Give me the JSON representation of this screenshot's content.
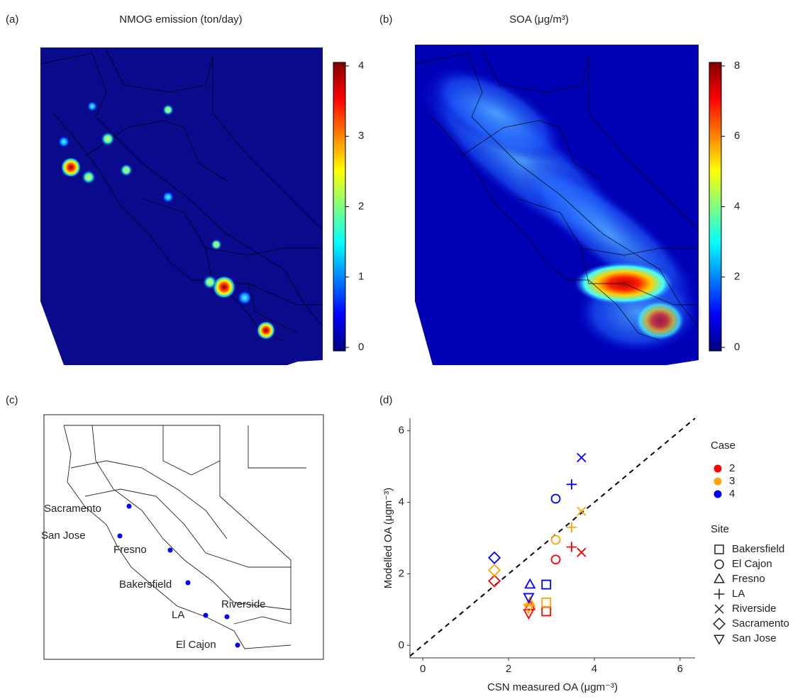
{
  "chart_data": [
    {
      "type": "heatmap-map",
      "label": "(a)",
      "title": "NMOG emission (ton/day)",
      "colorbar": {
        "lim": [
          -0.05,
          4.05
        ],
        "ticks": [
          0,
          1,
          2,
          3,
          4
        ],
        "colors": [
          "#00007f",
          "#0000ff",
          "#007fff",
          "#00ffff",
          "#7fff7f",
          "#ffff00",
          "#ff7f00",
          "#ff0000",
          "#7f0000"
        ]
      }
    },
    {
      "type": "heatmap-map",
      "label": "(b)",
      "title": "SOA (μg/m³)",
      "colorbar": {
        "lim": [
          -0.1,
          8.1
        ],
        "ticks": [
          0,
          2,
          4,
          6,
          8
        ],
        "colors": [
          "#00007f",
          "#0000ff",
          "#007fff",
          "#00ffff",
          "#7fff7f",
          "#ffff00",
          "#ff7f00",
          "#ff0000",
          "#7f0000"
        ]
      }
    },
    {
      "type": "site-map",
      "label": "(c)",
      "color": "#0000ff",
      "sites": [
        "Sacramento",
        "San Jose",
        "Fresno",
        "Bakersfield",
        "LA",
        "Riverside",
        "El Cajon"
      ]
    },
    {
      "type": "scatter",
      "label": "(d)",
      "xlabel": "CSN measured OA (μgm⁻³)",
      "ylabel": "Modelled OA (μgm⁻³)",
      "xlim": [
        -0.3,
        6.35
      ],
      "ylim": [
        -0.35,
        6.35
      ],
      "xticks": [
        0,
        2,
        4,
        6
      ],
      "yticks": [
        0,
        2,
        4,
        6
      ],
      "legend_title": "Case",
      "shape_legend_title": "Site",
      "sites": [
        "Bakersfield",
        "El Cajon",
        "Fresno",
        "LA",
        "Riverside",
        "Sacramento",
        "San Jose"
      ],
      "series": [
        {
          "name": "2",
          "color": "#ff0000",
          "x": [
            2.88,
            3.1,
            2.5,
            3.47,
            3.7,
            1.67,
            2.47
          ],
          "y": [
            0.95,
            2.4,
            1.1,
            2.75,
            2.6,
            1.8,
            0.9
          ]
        },
        {
          "name": "3",
          "color": "#ffa500",
          "x": [
            2.88,
            3.1,
            2.5,
            3.47,
            3.7,
            1.67,
            2.47
          ],
          "y": [
            1.2,
            2.95,
            1.2,
            3.3,
            3.75,
            2.1,
            1.05
          ]
        },
        {
          "name": "4",
          "color": "#0000ff",
          "x": [
            2.88,
            3.1,
            2.5,
            3.47,
            3.7,
            1.67,
            2.47
          ],
          "y": [
            1.7,
            4.1,
            1.7,
            4.5,
            5.25,
            2.45,
            1.35
          ]
        }
      ]
    }
  ]
}
